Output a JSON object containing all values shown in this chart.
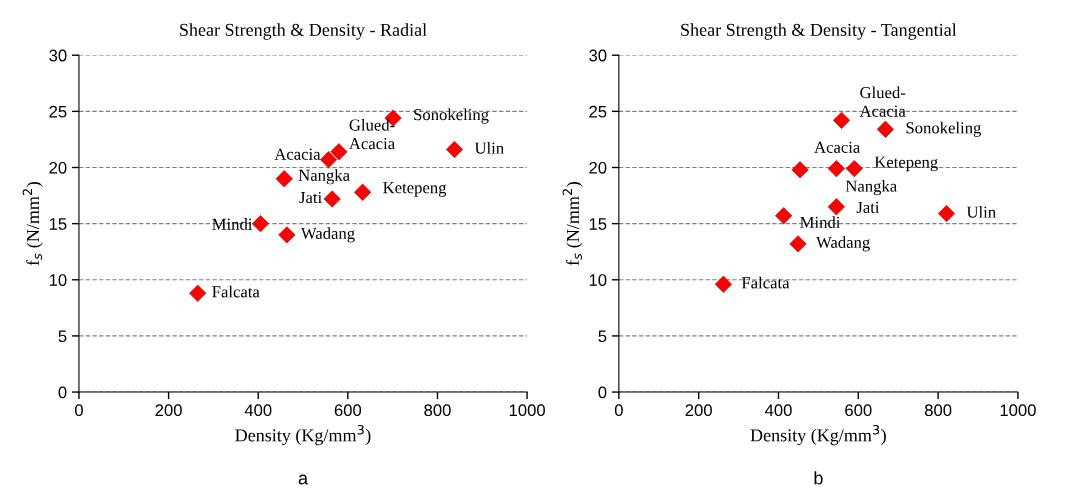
{
  "chart_data": [
    {
      "type": "scatter",
      "title": "Shear Strength & Density - Radial",
      "xlabel": "Density (Kg/mm$^{3}$)",
      "ylabel": "f$_{s}$ (N/mm$^{2}$)",
      "x": [
        265,
        405,
        464,
        458,
        565,
        557,
        580,
        633,
        701,
        838
      ],
      "values": [
        8.8,
        15.0,
        14.0,
        19.0,
        17.2,
        20.7,
        21.4,
        17.8,
        24.4,
        21.6
      ],
      "color": "#ff0000",
      "marker": "diamond",
      "xlim": [
        0,
        1000
      ],
      "xticks": [
        0,
        200,
        400,
        600,
        800,
        1000
      ],
      "ylim": [
        0,
        30
      ],
      "yticks": [
        0,
        5,
        10,
        15,
        20,
        25,
        30
      ],
      "grid": "y",
      "annotations": [
        {
          "text": "Falcata",
          "x": 265,
          "y": 8.8
        },
        {
          "text": "Mindi",
          "x": 405,
          "y": 15.0
        },
        {
          "text": "Wadang",
          "x": 464,
          "y": 14.0
        },
        {
          "text": "Nangka",
          "x": 458,
          "y": 19.0
        },
        {
          "text": "Jati",
          "x": 565,
          "y": 17.2
        },
        {
          "text": "Acacia",
          "x": 557,
          "y": 20.7
        },
        {
          "text": "Glued-\nAcacia",
          "x": 580,
          "y": 21.4
        },
        {
          "text": "Ketepeng",
          "x": 633,
          "y": 17.8
        },
        {
          "text": "Sonokeling",
          "x": 701,
          "y": 24.4
        },
        {
          "text": "Ulin",
          "x": 838,
          "y": 21.6
        },
        "a"
      ]
    },
    {
      "type": "scatter",
      "title": "Shear Strength & Density - Tangential",
      "xlabel": "Density (Kg/mm$^{3}$)",
      "ylabel": "f$_{s}$ (N/mm$^{2}$)",
      "x": [
        262,
        413,
        449,
        454,
        545,
        545,
        558,
        590,
        668,
        821
      ],
      "values": [
        9.6,
        15.7,
        13.2,
        19.8,
        16.5,
        19.9,
        24.2,
        19.9,
        23.4,
        15.9
      ],
      "color": "#ff0000",
      "marker": "diamond",
      "xlim": [
        0,
        1000
      ],
      "xticks": [
        0,
        200,
        400,
        600,
        800,
        1000
      ],
      "ylim": [
        0,
        30
      ],
      "yticks": [
        0,
        5,
        10,
        15,
        20,
        25,
        30
      ],
      "grid": "y",
      "annotations": [
        {
          "text": "Falcata",
          "x": 262,
          "y": 9.6
        },
        {
          "text": "Mindi",
          "x": 413,
          "y": 15.7
        },
        {
          "text": "Wadang",
          "x": 449,
          "y": 13.2
        },
        {
          "text": "Acacia",
          "x": 454,
          "y": 19.8
        },
        {
          "text": "Jati",
          "x": 545,
          "y": 16.5
        },
        {
          "text": "Nangka",
          "x": 545,
          "y": 19.9
        },
        {
          "text": "Glued-\nAcacia",
          "x": 558,
          "y": 24.2
        },
        {
          "text": "Ketepeng",
          "x": 590,
          "y": 19.9
        },
        {
          "text": "Sonokeling",
          "x": 668,
          "y": 23.4
        },
        {
          "text": "Ulin",
          "x": 821,
          "y": 15.9
        },
        "b"
      ]
    }
  ]
}
